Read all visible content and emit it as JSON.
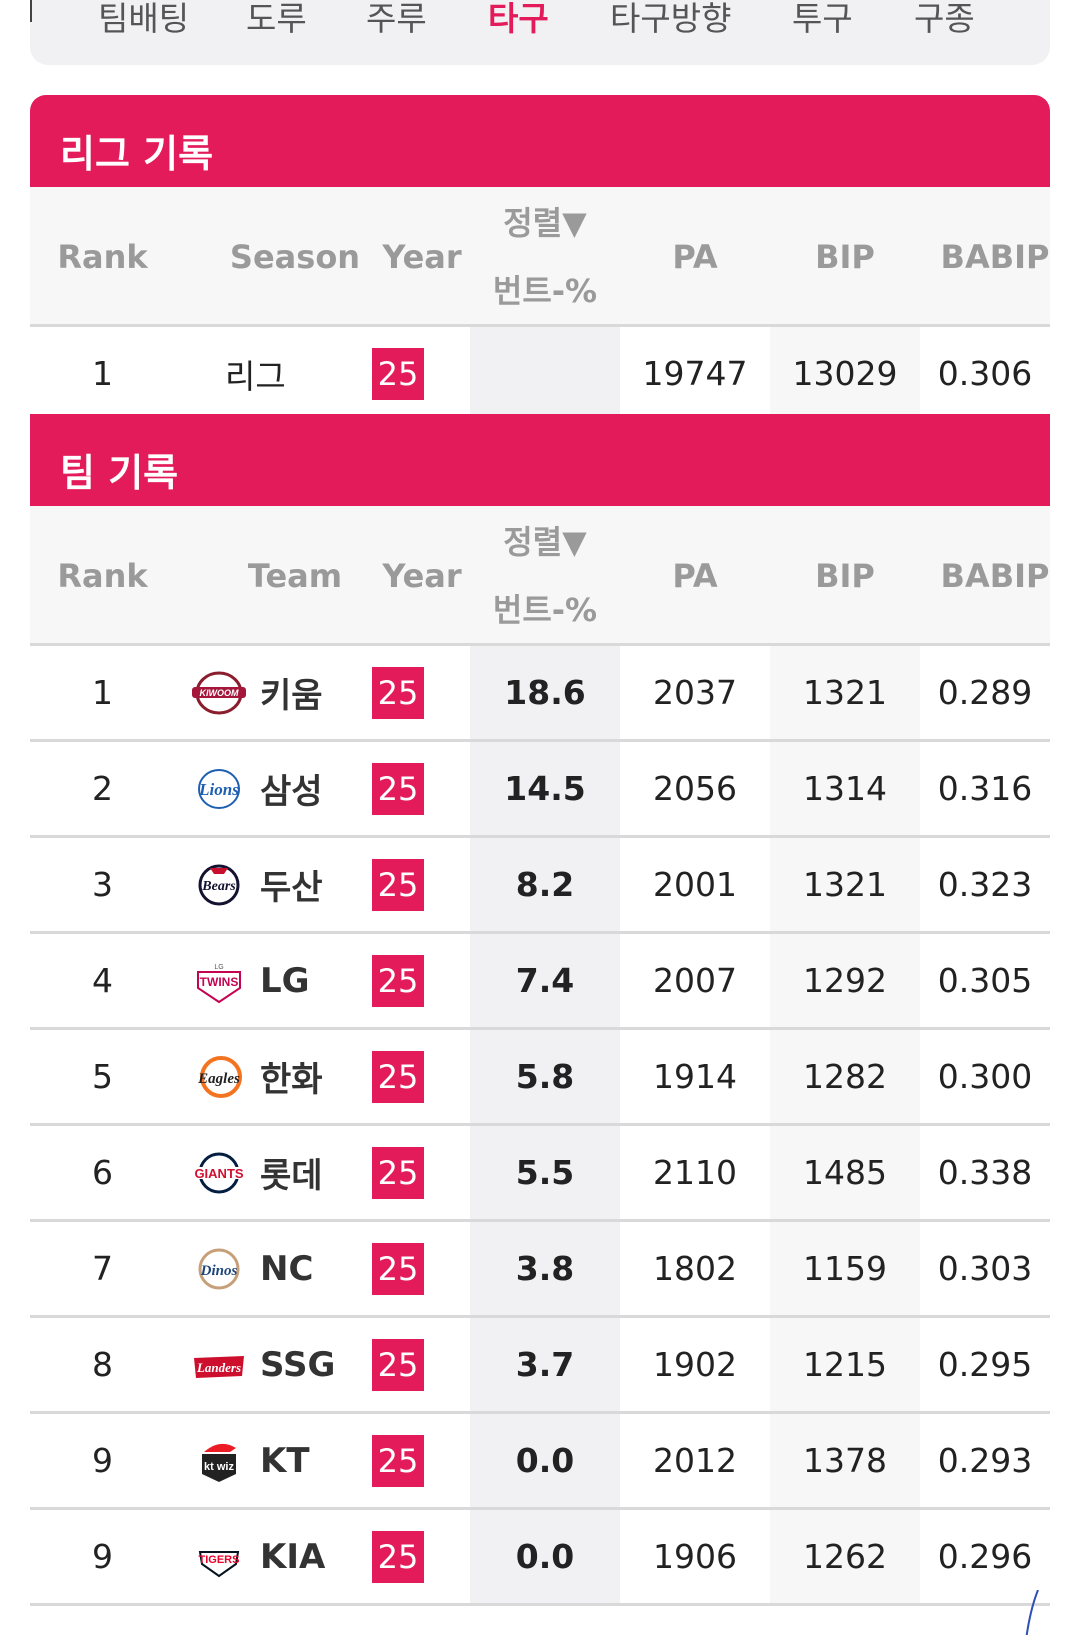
{
  "tabs": [
    {
      "label": "팀배팅",
      "active": false
    },
    {
      "label": "도루",
      "active": false
    },
    {
      "label": "주루",
      "active": false
    },
    {
      "label": "타구",
      "active": true
    },
    {
      "label": "타구방향",
      "active": false
    },
    {
      "label": "투구",
      "active": false
    },
    {
      "label": "구종",
      "active": false
    }
  ],
  "league": {
    "title": "리그 기록",
    "headers": {
      "rank": "Rank",
      "season": "Season",
      "year": "Year",
      "sort_top": "정렬▼",
      "sort_bottom": "번트-%",
      "pa": "PA",
      "bip": "BIP",
      "babip": "BABIP"
    },
    "row": {
      "rank": "1",
      "season": "리그",
      "year": "25",
      "bunt_pct": "",
      "pa": "19747",
      "bip": "13029",
      "babip": "0.306"
    }
  },
  "team": {
    "title": "팀 기록",
    "headers": {
      "rank": "Rank",
      "team": "Team",
      "year": "Year",
      "sort_top": "정렬▼",
      "sort_bottom": "번트-%",
      "pa": "PA",
      "bip": "BIP",
      "babip": "BABIP"
    },
    "rows": [
      {
        "rank": "1",
        "team": "키움",
        "logo": "kiwoom-logo",
        "year": "25",
        "bunt_pct": "18.6",
        "pa": "2037",
        "bip": "1321",
        "babip": "0.289"
      },
      {
        "rank": "2",
        "team": "삼성",
        "logo": "lions-logo",
        "year": "25",
        "bunt_pct": "14.5",
        "pa": "2056",
        "bip": "1314",
        "babip": "0.316"
      },
      {
        "rank": "3",
        "team": "두산",
        "logo": "bears-logo",
        "year": "25",
        "bunt_pct": "8.2",
        "pa": "2001",
        "bip": "1321",
        "babip": "0.323"
      },
      {
        "rank": "4",
        "team": "LG",
        "logo": "twins-logo",
        "year": "25",
        "bunt_pct": "7.4",
        "pa": "2007",
        "bip": "1292",
        "babip": "0.305"
      },
      {
        "rank": "5",
        "team": "한화",
        "logo": "eagles-logo",
        "year": "25",
        "bunt_pct": "5.8",
        "pa": "1914",
        "bip": "1282",
        "babip": "0.300"
      },
      {
        "rank": "6",
        "team": "롯데",
        "logo": "giants-logo",
        "year": "25",
        "bunt_pct": "5.5",
        "pa": "2110",
        "bip": "1485",
        "babip": "0.338"
      },
      {
        "rank": "7",
        "team": "NC",
        "logo": "dinos-logo",
        "year": "25",
        "bunt_pct": "3.8",
        "pa": "1802",
        "bip": "1159",
        "babip": "0.303"
      },
      {
        "rank": "8",
        "team": "SSG",
        "logo": "landers-logo",
        "year": "25",
        "bunt_pct": "3.7",
        "pa": "1902",
        "bip": "1215",
        "babip": "0.295"
      },
      {
        "rank": "9",
        "team": "KT",
        "logo": "ktwiz-logo",
        "year": "25",
        "bunt_pct": "0.0",
        "pa": "2012",
        "bip": "1378",
        "babip": "0.293"
      },
      {
        "rank": "9",
        "team": "KIA",
        "logo": "tigers-logo",
        "year": "25",
        "bunt_pct": "0.0",
        "pa": "1906",
        "bip": "1262",
        "babip": "0.296"
      }
    ]
  },
  "colors": {
    "accent": "#e31b5a",
    "header_text": "#9a9a9a",
    "sorted_col_bg": "#f1f1f3"
  }
}
